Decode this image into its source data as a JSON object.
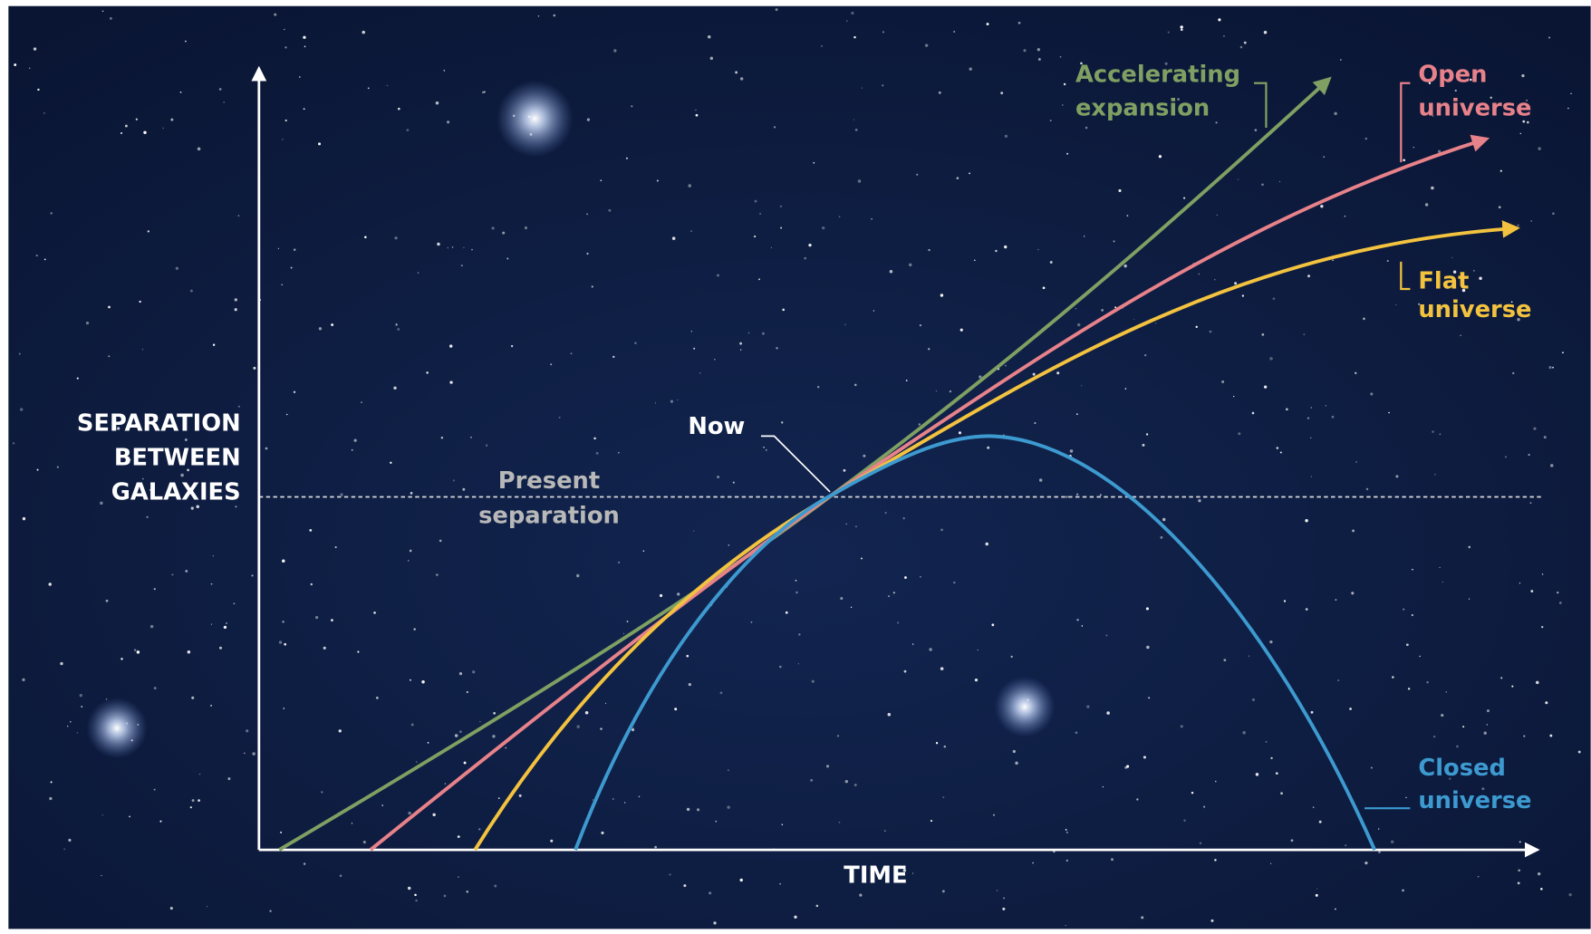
{
  "y_axis_label": {
    "lines": [
      "SEPARATION",
      "BETWEEN",
      "GALAXIES"
    ]
  },
  "x_axis_label": "TIME",
  "now_label": "Now",
  "present_label": {
    "lines": [
      "Present",
      "separation"
    ]
  },
  "curves": [
    {
      "lines": [
        "Accelerating",
        "expansion"
      ]
    },
    {
      "lines": [
        "Open",
        "universe"
      ]
    },
    {
      "lines": [
        "Flat",
        "universe"
      ]
    },
    {
      "lines": [
        "Closed",
        "universe"
      ]
    }
  ]
}
